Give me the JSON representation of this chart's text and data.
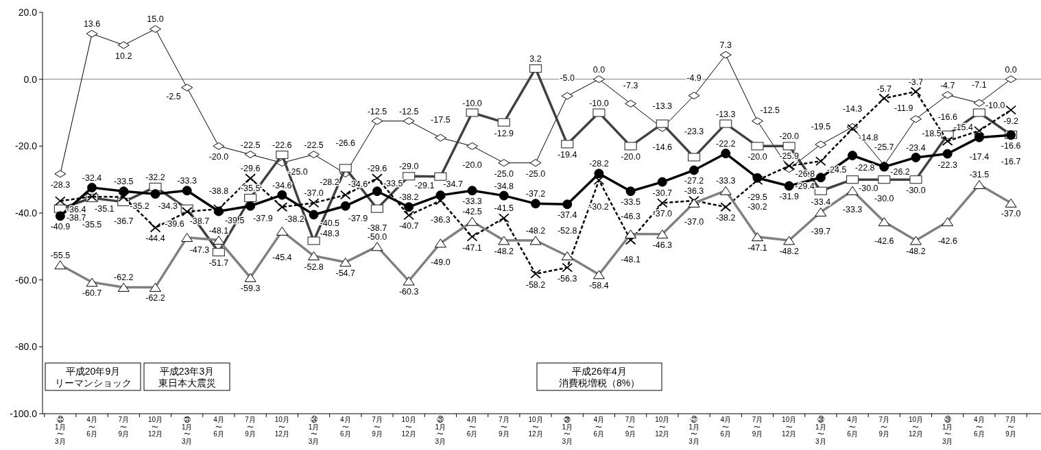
{
  "chart_data": {
    "type": "line",
    "categories": [
      "㉒1月〜3月",
      "4月〜6月",
      "7月〜9月",
      "10月〜12月",
      "㉓1月〜3月",
      "4月〜6月",
      "7月〜9月",
      "10月〜12月",
      "㉔1月〜3月",
      "4月〜6月",
      "7月〜9月",
      "10月〜12月",
      "㉕1月〜3月",
      "4月〜6月",
      "7月〜9月",
      "10月〜12月",
      "㉖1月〜3月",
      "4月〜6月",
      "7月〜9月",
      "10月〜12月",
      "㉗1月〜3月",
      "4月〜6月",
      "7月〜9月",
      "10月〜12月",
      "㉘1月〜3月",
      "4月〜6月",
      "7月〜9月",
      "10月〜12月",
      "㉙1月〜3月",
      "4月〜6月",
      "7月〜9月"
    ],
    "ylim": [
      -100,
      20
    ],
    "yticks": [
      {
        "value": -100,
        "label": "-100.0"
      },
      {
        "value": -80,
        "label": "-80.0"
      },
      {
        "value": -60,
        "label": "-60.0"
      },
      {
        "value": -40,
        "label": "-40.0"
      },
      {
        "value": -20,
        "label": "-20.0"
      },
      {
        "value": 0,
        "label": "0.0"
      },
      {
        "value": 20,
        "label": "20.0"
      }
    ],
    "ref_lines": [
      {
        "axis": "y",
        "value": 0,
        "color": "#808080"
      }
    ],
    "series": [
      {
        "color": "#000000",
        "marker": "diamond",
        "line_style": "solid",
        "values": [
          -28.3,
          13.6,
          10.2,
          15.0,
          -2.5,
          -20.0,
          -22.5,
          -25.0,
          -22.5,
          -28.2,
          -12.5,
          -12.5,
          -17.5,
          -20.0,
          -25.0,
          -25.0,
          -5.0,
          0.0,
          -7.3,
          -14.6,
          -4.9,
          7.3,
          -12.5,
          -26.8,
          -19.5,
          -14.3,
          -25.7,
          -11.9,
          -4.7,
          -7.1,
          0.0
        ],
        "value_labels": [
          "-28.3",
          "13.6",
          "10.2",
          "15.0",
          "-2.5",
          "-20.0",
          "-22.5",
          "-25.0",
          "-22.5",
          "-28.2",
          "-12.5",
          "-12.5",
          "-17.5",
          "-20.0",
          "-25.0",
          "-25.0",
          "-5.0",
          "0.0",
          "-7.3",
          "-14.6",
          "-4.9",
          "7.3",
          "-12.5",
          "-26.8",
          "-19.5",
          "-14.3",
          "-25.7",
          "-11.9",
          "-4.7",
          "-7.1",
          "0.0"
        ]
      },
      {
        "color": "#404040",
        "marker": "square",
        "line_style": "solid",
        "values": [
          -38.7,
          -35.5,
          -36.7,
          -32.2,
          -38.7,
          -51.7,
          -35.5,
          -22.6,
          -48.3,
          -26.6,
          -38.7,
          -29.0,
          -29.1,
          -10.0,
          -12.9,
          3.2,
          -19.4,
          -10.0,
          -20.0,
          -13.3,
          -23.3,
          -13.3,
          -20.0,
          -20.0,
          -33.4,
          -30.0,
          -30.0,
          -30.0,
          -16.6,
          -10.0,
          -16.6
        ],
        "value_labels": [
          "-38.7",
          "-35.5",
          "-36.7",
          "-32.2",
          "-38.7",
          "-51.7",
          "-35.5",
          "-22.6",
          "-48.3",
          "-26.6",
          "-38.7",
          "-29.0",
          "-29.1",
          "-10.0",
          "-12.9",
          "3.2",
          "-19.4",
          "-10.0",
          "-20.0",
          "-13.3",
          "-23.3",
          "-13.3",
          "-20.0",
          "-20.0",
          "-33.4",
          "-30.0",
          "-30.0",
          "-30.0",
          "-16.6",
          "-10.0",
          "-16.6"
        ]
      },
      {
        "color": "#000000",
        "marker": "cross",
        "line_style": "dashed",
        "values": [
          -36.4,
          -35.1,
          -35.2,
          -44.4,
          -39.6,
          -38.8,
          -29.6,
          -38.2,
          -37.0,
          -34.6,
          -29.6,
          -40.7,
          -36.3,
          -47.1,
          -41.5,
          -58.2,
          -56.3,
          -30.2,
          -48.1,
          -37.0,
          -36.3,
          -38.2,
          -30.2,
          -25.9,
          -24.5,
          -14.8,
          -5.7,
          -3.7,
          -18.5,
          -15.4,
          -9.2
        ],
        "value_labels": [
          "-36.4",
          "-35.1",
          "-35.2",
          "-44.4",
          "-39.6",
          "-38.8",
          "-29.6",
          "-38.2",
          "-37.0",
          "-34.6",
          "-29.6",
          "-40.7",
          "-36.3",
          "-47.1",
          "-41.5",
          "-58.2",
          "-56.3",
          "-30.2",
          "-48.1",
          "-37.0",
          "-36.3",
          "-38.2",
          "-30.2",
          "-25.9",
          "-24.5",
          "-14.8",
          "-5.7",
          "-3.7",
          "-18.5",
          "-15.4",
          "-9.2"
        ]
      },
      {
        "color": "#000000",
        "marker": "circle",
        "line_style": "solid",
        "values": [
          -40.9,
          -32.4,
          -33.5,
          -34.3,
          -33.3,
          -39.5,
          -37.9,
          -34.6,
          -40.5,
          -37.9,
          -33.5,
          -38.2,
          -34.7,
          -33.3,
          -34.8,
          -37.2,
          -37.4,
          -28.2,
          -33.5,
          -30.7,
          -27.2,
          -22.2,
          -29.5,
          -31.9,
          -29.4,
          -22.8,
          -26.2,
          -23.4,
          -22.3,
          -17.4,
          -16.7
        ],
        "value_labels": [
          "-40.9",
          "-32.4",
          "-33.5",
          "-34.3",
          "-33.3",
          "-39.5",
          "-37.9",
          "-34.6",
          "-40.5",
          "-37.9",
          "-33.5",
          "-38.2",
          "-34.7",
          "-33.3",
          "-34.8",
          "-37.2",
          "-37.4",
          "-28.2",
          "-33.5",
          "-30.7",
          "-27.2",
          "-22.2",
          "-29.5",
          "-31.9",
          "-29.4",
          "-22.8",
          "-26.2",
          "-23.4",
          "-22.3",
          "-17.4",
          "-16.7"
        ]
      },
      {
        "color": "#808080",
        "marker": "triangle",
        "line_style": "solid",
        "values": [
          -55.5,
          -60.7,
          -62.2,
          -62.2,
          -47.3,
          -48.1,
          -59.3,
          -45.4,
          -52.8,
          -54.7,
          -50.0,
          -60.3,
          -49.0,
          -42.5,
          -48.2,
          -48.2,
          -52.8,
          -58.4,
          -46.3,
          -46.3,
          -37.0,
          -33.3,
          -47.1,
          -48.2,
          -39.7,
          -33.3,
          -42.6,
          -48.2,
          -42.6,
          -31.5,
          -37.0
        ],
        "value_labels": [
          "-55.5",
          "-60.7",
          "-62.2",
          "-62.2",
          "-47.3",
          "-48.1",
          "-59.3",
          "-45.4",
          "-52.8",
          "-54.7",
          "-50.0",
          "-60.3",
          "-49.0",
          "-42.5",
          "-48.2",
          "-48.2",
          "-52.8",
          "-58.4",
          "-46.3",
          "-46.3",
          "-37.0",
          "-33.3",
          "-47.1",
          "-48.2",
          "-39.7",
          "-33.3",
          "-42.6",
          "-48.2",
          "-42.6",
          "-31.5",
          "-37.0"
        ]
      }
    ],
    "annotations": [
      "平成20年9月リーマンショック",
      "平成23年3月東日本大震災",
      "平成26年4月消費税増税（8%）"
    ]
  }
}
